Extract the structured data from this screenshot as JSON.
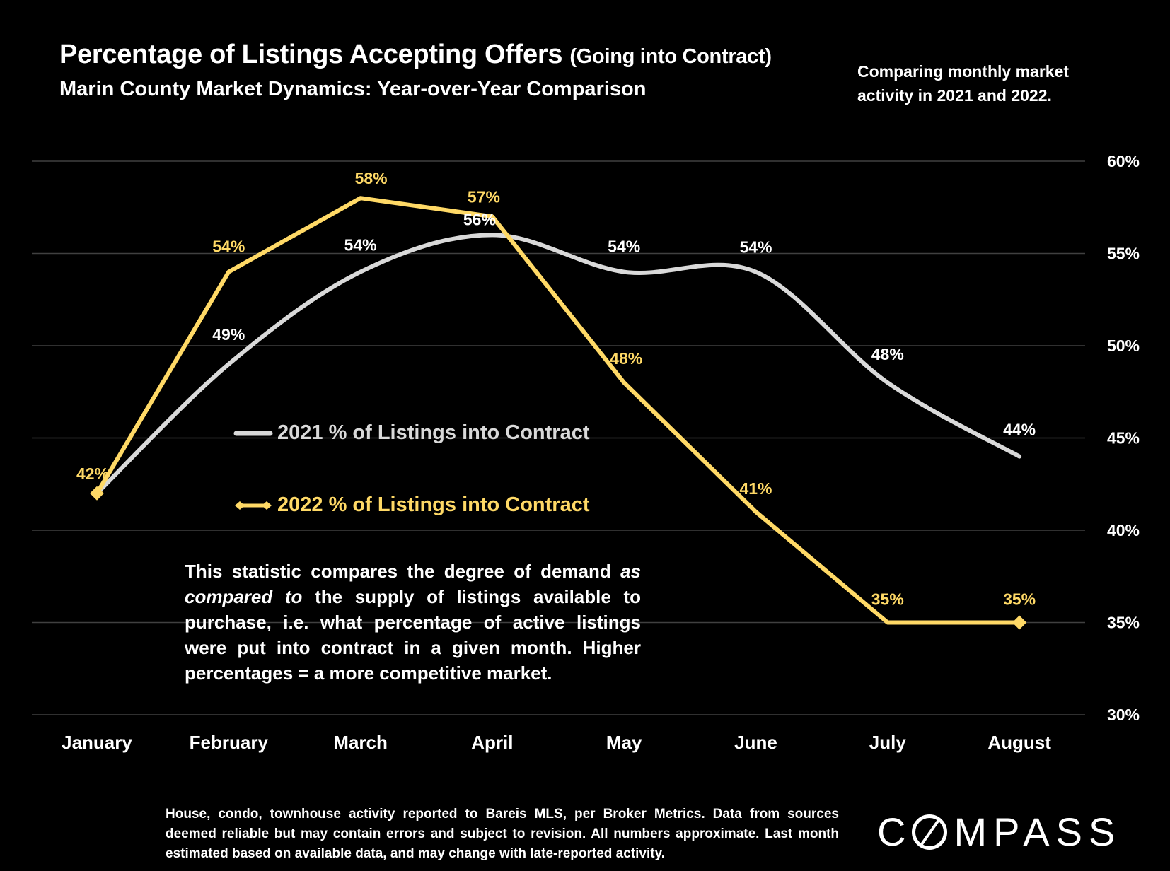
{
  "title": {
    "main": "Percentage of Listings Accepting Offers",
    "suffix": "(Going into Contract)",
    "subtitle": "Marin County Market Dynamics: Year-over-Year Comparison"
  },
  "side_note": "Comparing monthly market activity in 2021 and 2022.",
  "annotation": {
    "part1": "This statistic compares the degree of demand ",
    "emphasis": "as compared to",
    "part2": " the supply of listings available to purchase, i.e. what percentage of active listings were put into contract in a given month. Higher percentages = a more competitive market."
  },
  "footnote": "House, condo, townhouse activity reported to Bareis MLS, per Broker Metrics. Data from sources deemed reliable but may contain errors and subject to revision. All numbers approximate. Last month estimated based on available data, and may change with late-reported activity.",
  "logo": {
    "letter_c": "C",
    "rest": "MPASS"
  },
  "colors": {
    "background": "#000000",
    "series_2021": "#d9d9d9",
    "series_2022": "#ffd966",
    "grid": "#404040",
    "text": "#ffffff"
  },
  "chart_data": {
    "type": "line",
    "categories": [
      "January",
      "February",
      "March",
      "April",
      "May",
      "June",
      "July",
      "August"
    ],
    "series": [
      {
        "name": "2021 % of Listings into Contract",
        "values": [
          42,
          49,
          54,
          56,
          54,
          54,
          48,
          44
        ],
        "labels": [
          "",
          "49%",
          "54%",
          "56%",
          "54%",
          "54%",
          "48%",
          "44%"
        ],
        "style": "smooth-line",
        "color": "#d9d9d9"
      },
      {
        "name": "2022 % of Listings into Contract",
        "values": [
          42,
          54,
          58,
          57,
          48,
          41,
          35,
          35
        ],
        "labels": [
          "42%",
          "54%",
          "58%",
          "57%",
          "48%",
          "41%",
          "35%",
          "35%"
        ],
        "style": "line-with-end-diamond-markers",
        "color": "#ffd966"
      }
    ],
    "ylim": [
      30,
      60
    ],
    "y_ticks": [
      "30%",
      "35%",
      "40%",
      "45%",
      "50%",
      "55%",
      "60%"
    ],
    "y_axis_side": "right",
    "grid": true,
    "legend_position": "center-left"
  }
}
